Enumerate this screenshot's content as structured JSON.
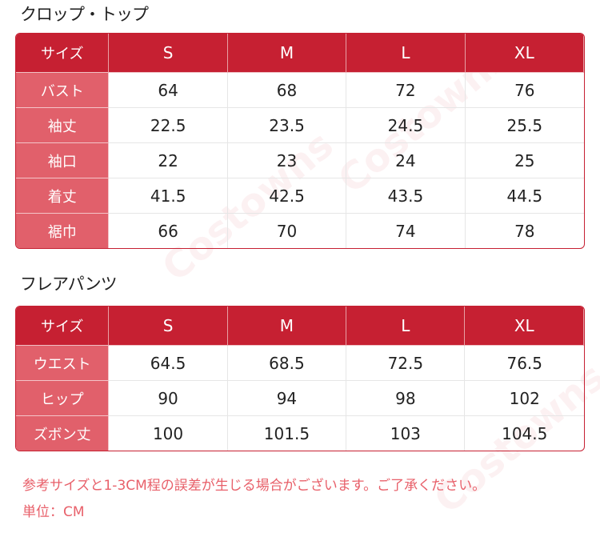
{
  "watermark": "Costowns",
  "tables": [
    {
      "title": "クロップ・トップ",
      "header": [
        "サイズ",
        "S",
        "M",
        "L",
        "XL"
      ],
      "rows": [
        [
          "バスト",
          "64",
          "68",
          "72",
          "76"
        ],
        [
          "袖丈",
          "22.5",
          "23.5",
          "24.5",
          "25.5"
        ],
        [
          "袖口",
          "22",
          "23",
          "24",
          "25"
        ],
        [
          "着丈",
          "41.5",
          "42.5",
          "43.5",
          "44.5"
        ],
        [
          "裾巾",
          "66",
          "70",
          "74",
          "78"
        ]
      ]
    },
    {
      "title": "フレアパンツ",
      "header": [
        "サイズ",
        "S",
        "M",
        "L",
        "XL"
      ],
      "rows": [
        [
          "ウエスト",
          "64.5",
          "68.5",
          "72.5",
          "76.5"
        ],
        [
          "ヒップ",
          "90",
          "94",
          "98",
          "102"
        ],
        [
          "ズボン丈",
          "100",
          "101.5",
          "103",
          "104.5"
        ]
      ]
    }
  ],
  "notes": {
    "line1": "参考サイズと1-3CM程の誤差が生じる場合がございます。ご了承ください。",
    "line2": "単位：CM"
  },
  "colors": {
    "header": "#c62032",
    "label_column": "#e1606b",
    "note": "#e8606a"
  }
}
